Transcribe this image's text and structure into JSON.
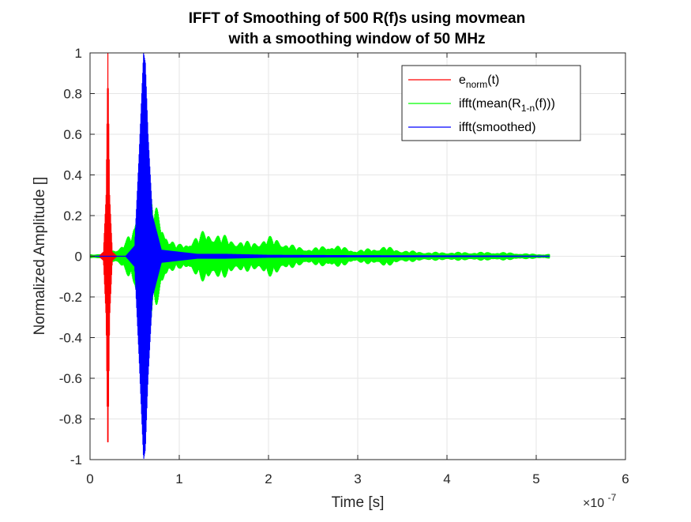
{
  "chart_data": {
    "type": "line",
    "title": [
      "IFFT of Smoothing of 500 R(f)s using movmean",
      "with a smoothing window of 50 MHz"
    ],
    "xlabel": "Time [s]",
    "ylabel": "Normalized Amplitude []",
    "x_exponent_label": {
      "base": "×10",
      "exp": "-7"
    },
    "xlim": [
      0,
      6
    ],
    "ylim": [
      -1,
      1
    ],
    "x_ticks": [
      0,
      1,
      2,
      3,
      4,
      5,
      6
    ],
    "x_tick_labels": [
      "0",
      "1",
      "2",
      "3",
      "4",
      "5",
      "6"
    ],
    "y_ticks": [
      -1,
      -0.8,
      -0.6,
      -0.4,
      -0.2,
      0,
      0.2,
      0.4,
      0.6,
      0.8,
      1
    ],
    "y_tick_labels": [
      "-1",
      "-0.8",
      "-0.6",
      "-0.4",
      "-0.2",
      "0",
      "0.2",
      "0.4",
      "0.6",
      "0.8",
      "1"
    ],
    "grid": true,
    "legend_position": "top-right",
    "series": [
      {
        "name": "enorm(t)",
        "legend": {
          "base": "e",
          "sub": "norm",
          "tail": "(t)"
        },
        "color": "#ff0000",
        "envelope": [
          [
            0.0,
            0.0
          ],
          [
            0.1,
            0.0
          ],
          [
            0.15,
            0.02
          ],
          [
            0.18,
            0.3
          ],
          [
            0.2,
            1.0
          ],
          [
            0.22,
            0.3
          ],
          [
            0.25,
            0.02
          ],
          [
            0.3,
            0.0
          ],
          [
            5.15,
            0.0
          ]
        ]
      },
      {
        "name": "ifft(mean(R1-n(f)))",
        "legend": {
          "base": "ifft(mean(R",
          "sub": "1-n",
          "tail": "(f)))"
        },
        "color": "#00ff00",
        "envelope": [
          [
            0.0,
            0.01
          ],
          [
            0.1,
            0.01
          ],
          [
            0.2,
            0.02
          ],
          [
            0.3,
            0.04
          ],
          [
            0.4,
            0.08
          ],
          [
            0.5,
            0.15
          ],
          [
            0.55,
            0.3
          ],
          [
            0.6,
            0.55
          ],
          [
            0.65,
            0.4
          ],
          [
            0.7,
            0.3
          ],
          [
            0.8,
            0.2
          ],
          [
            0.9,
            0.08
          ],
          [
            1.0,
            0.06
          ],
          [
            1.2,
            0.1
          ],
          [
            1.3,
            0.14
          ],
          [
            1.4,
            0.12
          ],
          [
            1.6,
            0.09
          ],
          [
            1.8,
            0.07
          ],
          [
            2.0,
            0.1
          ],
          [
            2.1,
            0.09
          ],
          [
            2.3,
            0.05
          ],
          [
            2.5,
            0.04
          ],
          [
            2.7,
            0.06
          ],
          [
            3.0,
            0.03
          ],
          [
            3.3,
            0.05
          ],
          [
            3.5,
            0.03
          ],
          [
            3.8,
            0.02
          ],
          [
            4.2,
            0.02
          ],
          [
            4.6,
            0.02
          ],
          [
            5.0,
            0.01
          ],
          [
            5.15,
            0.01
          ]
        ]
      },
      {
        "name": "ifft(smoothed)",
        "legend": {
          "base": "ifft(smoothed)",
          "sub": "",
          "tail": ""
        },
        "color": "#0000ff",
        "envelope": [
          [
            0.0,
            0.0
          ],
          [
            0.4,
            0.0
          ],
          [
            0.5,
            0.05
          ],
          [
            0.55,
            0.5
          ],
          [
            0.6,
            1.0
          ],
          [
            0.62,
            0.95
          ],
          [
            0.65,
            0.6
          ],
          [
            0.7,
            0.2
          ],
          [
            0.8,
            0.03
          ],
          [
            1.0,
            0.02
          ],
          [
            1.2,
            0.01
          ],
          [
            1.5,
            0.01
          ],
          [
            2.0,
            0.005
          ],
          [
            2.5,
            0.004
          ],
          [
            3.0,
            0.003
          ],
          [
            4.0,
            0.002
          ],
          [
            5.0,
            0.001
          ],
          [
            5.15,
            0.001
          ]
        ]
      }
    ]
  }
}
